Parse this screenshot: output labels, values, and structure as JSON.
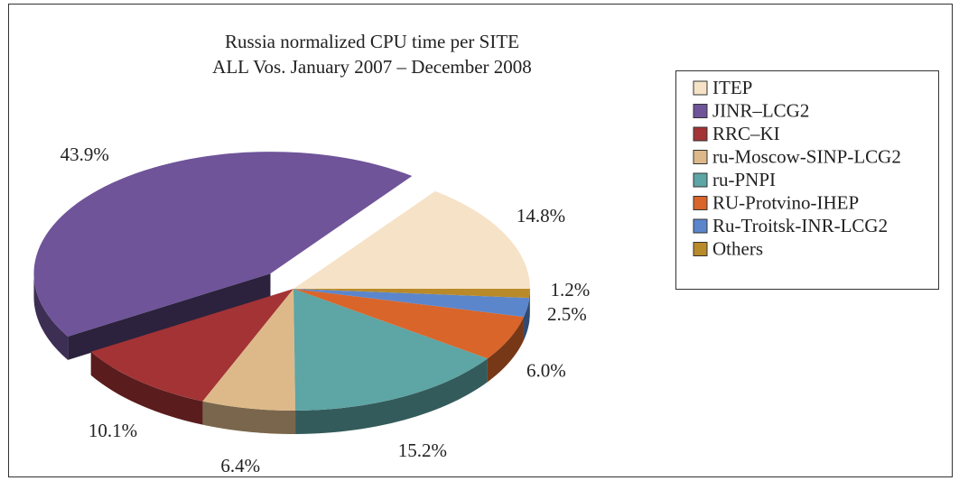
{
  "chart_data": {
    "type": "pie",
    "title": "Russia normalized CPU time per SITE",
    "subtitle": "ALL Vos. January 2007 – December 2008",
    "categories": [
      "ITEP",
      "JINR–LCG2",
      "RRC–KI",
      "ru-Moscow-SINP-LCG2",
      "ru-PNPI",
      "RU-Protvino-IHEP",
      "Ru-Troitsk-INR-LCG2",
      "Others"
    ],
    "values": [
      14.8,
      43.9,
      10.1,
      6.4,
      15.2,
      6.0,
      2.5,
      1.2
    ],
    "value_labels": [
      "14.8%",
      "43.9%",
      "10.1%",
      "6.4%",
      "15.2%",
      "6.0%",
      "2.5%",
      "1.2%"
    ],
    "colors": [
      "#f6e2c6",
      "#6f5499",
      "#a33335",
      "#ddb98a",
      "#5ea5a5",
      "#d9652a",
      "#5b86cc",
      "#b98a2a"
    ],
    "legend": "right"
  }
}
